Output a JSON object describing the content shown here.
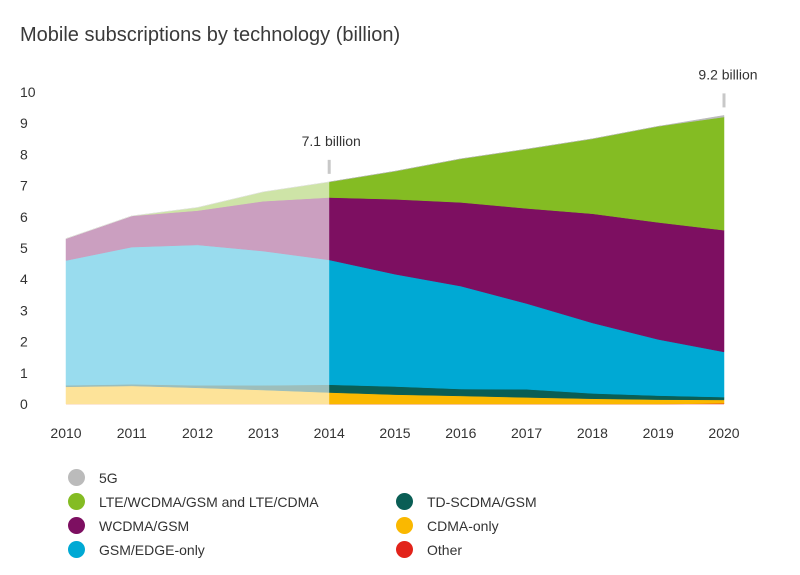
{
  "chart_data": {
    "type": "area",
    "title": "Mobile subscriptions by technology (billion)",
    "xlabel": "",
    "ylabel": "",
    "x": [
      2010,
      2011,
      2012,
      2013,
      2014,
      2015,
      2016,
      2017,
      2018,
      2019,
      2020
    ],
    "ylim": [
      0,
      10
    ],
    "yticks": [
      0,
      1,
      2,
      3,
      4,
      5,
      6,
      7,
      8,
      9,
      10
    ],
    "history_end": 2014,
    "series": [
      {
        "name": "Other",
        "color": "#e2231a",
        "values": [
          0,
          0,
          0,
          0,
          0,
          0,
          0,
          0,
          0,
          0,
          0.02
        ]
      },
      {
        "name": "CDMA-only",
        "color": "#fab800",
        "values": [
          0.55,
          0.58,
          0.52,
          0.45,
          0.37,
          0.3,
          0.26,
          0.21,
          0.17,
          0.14,
          0.11
        ]
      },
      {
        "name": "TD-SCDMA/GSM",
        "color": "#0a5e55",
        "values": [
          0.05,
          0.05,
          0.08,
          0.15,
          0.25,
          0.26,
          0.22,
          0.26,
          0.17,
          0.13,
          0.09
        ]
      },
      {
        "name": "GSM/EDGE-only",
        "color": "#00a9d4",
        "values": [
          4.0,
          4.4,
          4.5,
          4.3,
          4.0,
          3.6,
          3.3,
          2.75,
          2.26,
          1.8,
          1.45
        ]
      },
      {
        "name": "WCDMA/GSM",
        "color": "#7d0f61",
        "values": [
          0.7,
          1.0,
          1.1,
          1.6,
          2.0,
          2.4,
          2.68,
          3.05,
          3.5,
          3.75,
          3.9
        ]
      },
      {
        "name": "LTE/WCDMA/GSM and LTE/CDMA",
        "color": "#84bc23",
        "values": [
          0,
          0,
          0.1,
          0.3,
          0.5,
          0.9,
          1.4,
          1.9,
          2.4,
          3.08,
          3.63
        ]
      },
      {
        "name": "5G",
        "color": "#bbbbbb",
        "values": [
          0,
          0,
          0,
          0,
          0,
          0,
          0,
          0,
          0,
          0,
          0.05
        ]
      }
    ],
    "annotations": [
      {
        "x": 2014,
        "text": "7.1 billion"
      },
      {
        "x": 2020,
        "text": "9.2 billion"
      }
    ],
    "legend": [
      [
        "5G",
        "#bbbbbb"
      ],
      [
        "LTE/WCDMA/GSM and LTE/CDMA",
        "#84bc23"
      ],
      [
        "WCDMA/GSM",
        "#7d0f61"
      ],
      [
        "GSM/EDGE-only",
        "#00a9d4"
      ],
      [
        "TD-SCDMA/GSM",
        "#0a5e55"
      ],
      [
        "CDMA-only",
        "#fab800"
      ],
      [
        "Other",
        "#e2231a"
      ]
    ]
  }
}
